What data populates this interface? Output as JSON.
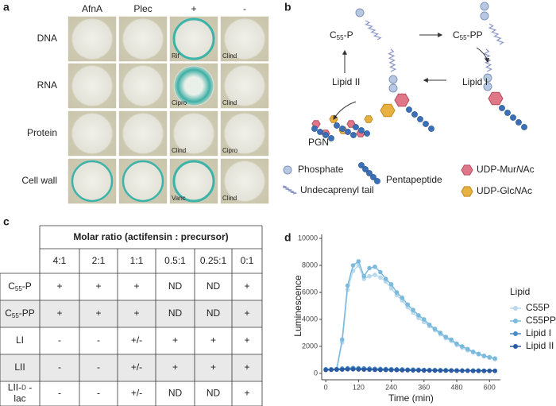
{
  "panel_labels": [
    "a",
    "b",
    "c",
    "d"
  ],
  "plates": {
    "columns": [
      "AfnA",
      "Plec",
      "+",
      "-"
    ],
    "rows": [
      {
        "label": "DNA",
        "controls": [
          "Rif",
          "Clind"
        ]
      },
      {
        "label": "RNA",
        "controls": [
          "Cipro",
          "Clind"
        ]
      },
      {
        "label": "Protein",
        "controls": [
          "Clind",
          "Cipro"
        ]
      },
      {
        "label": "Cell wall",
        "controls": [
          "Vanc",
          "Clind"
        ]
      }
    ]
  },
  "pathway": {
    "stages": [
      [
        {
          "text": "C"
        },
        {
          "text": "55",
          "sub": true
        },
        {
          "text": "-P"
        }
      ],
      [
        {
          "text": "C"
        },
        {
          "text": "55",
          "sub": true
        },
        {
          "text": "-PP"
        }
      ],
      [
        {
          "text": "Lipid I"
        }
      ],
      [
        {
          "text": "Lipid II"
        }
      ],
      [
        {
          "text": "PGN"
        }
      ]
    ],
    "legend": [
      [
        {
          "text": "Phosphate"
        }
      ],
      [
        {
          "text": "Undecaprenyl tail"
        }
      ],
      [
        {
          "text": "Pentapeptide"
        }
      ],
      [
        {
          "text": "UDP-Mur"
        },
        {
          "text": "N",
          "italic": true
        },
        {
          "text": "Ac"
        }
      ],
      [
        {
          "text": "UDP-Glc"
        },
        {
          "text": "N",
          "italic": true
        },
        {
          "text": "Ac"
        }
      ]
    ]
  },
  "table": {
    "title": "Molar ratio (actifensin : precursor)",
    "ratios": [
      "4:1",
      "2:1",
      "1:1",
      "0.5:1",
      "0.25:1",
      "0:1"
    ],
    "rows": [
      {
        "label": [
          [
            {
              "text": "C"
            },
            {
              "text": "55",
              "sub": true
            },
            {
              "text": "-P"
            }
          ]
        ],
        "cells": [
          "+",
          "+",
          "+",
          "ND",
          "ND",
          "+"
        ]
      },
      {
        "label": [
          [
            {
              "text": "C"
            },
            {
              "text": "55",
              "sub": true
            },
            {
              "text": "-PP"
            }
          ]
        ],
        "cells": [
          "+",
          "+",
          "+",
          "ND",
          "ND",
          "+"
        ]
      },
      {
        "label": [
          [
            {
              "text": "LI"
            }
          ]
        ],
        "cells": [
          "-",
          "-",
          "+/-",
          "+",
          "+",
          "+"
        ]
      },
      {
        "label": [
          [
            {
              "text": "LII"
            }
          ]
        ],
        "cells": [
          "-",
          "-",
          "+/-",
          "+",
          "+",
          "+"
        ]
      },
      {
        "label": [
          [
            {
              "text": "LII-"
            },
            {
              "text": "D",
              "small": true
            },
            {
              "text": " -"
            }
          ],
          [
            {
              "text": "lac"
            }
          ]
        ],
        "cells": [
          "-",
          "-",
          "+/-",
          "ND",
          "ND",
          "+"
        ]
      }
    ]
  },
  "chart_data": {
    "type": "line",
    "x_label": "Time (min)",
    "y_label": "Luminescence",
    "legend_title": "Lipid",
    "x": [
      0,
      20,
      40,
      60,
      80,
      100,
      120,
      140,
      160,
      180,
      200,
      220,
      240,
      260,
      280,
      300,
      320,
      340,
      360,
      380,
      400,
      420,
      440,
      460,
      480,
      500,
      520,
      540,
      560,
      580,
      600,
      620
    ],
    "series": [
      {
        "name": "C55P",
        "color": "#b9d9ec",
        "values": [
          300,
          300,
          300,
          2300,
          6200,
          7600,
          8000,
          7000,
          7200,
          7300,
          7100,
          6800,
          6300,
          5800,
          5400,
          4900,
          4500,
          4100,
          3800,
          3500,
          3200,
          2900,
          2600,
          2400,
          2100,
          1900,
          1700,
          1550,
          1400,
          1250,
          1150,
          1050
        ]
      },
      {
        "name": "C55PP",
        "color": "#7bbadd",
        "values": [
          300,
          300,
          300,
          2500,
          6500,
          8000,
          8300,
          7200,
          7800,
          7900,
          7500,
          7000,
          6600,
          6000,
          5600,
          5100,
          4700,
          4300,
          4000,
          3600,
          3300,
          3000,
          2700,
          2500,
          2200,
          2000,
          1800,
          1600,
          1450,
          1300,
          1200,
          1100
        ]
      },
      {
        "name": "Lipid I",
        "color": "#4a8cc6",
        "values": [
          300,
          300,
          320,
          350,
          380,
          400,
          380,
          370,
          350,
          340,
          330,
          320,
          310,
          300,
          290,
          280,
          280,
          270,
          260,
          250,
          250,
          240,
          240,
          230,
          230,
          220,
          220,
          210,
          210,
          200,
          200,
          200
        ]
      },
      {
        "name": "Lipid II",
        "color": "#2a5aa2",
        "values": [
          250,
          260,
          270,
          280,
          300,
          300,
          290,
          280,
          270,
          260,
          250,
          250,
          240,
          240,
          230,
          230,
          220,
          220,
          210,
          210,
          200,
          200,
          200,
          200,
          190,
          190,
          190,
          180,
          180,
          180,
          180,
          180
        ]
      }
    ],
    "xlim": [
      -15,
      640
    ],
    "ylim": [
      -300,
      10300
    ],
    "xticks": [
      0,
      120,
      240,
      360,
      480,
      600
    ],
    "yticks": [
      0,
      2000,
      4000,
      6000,
      8000,
      10000
    ],
    "legend": "right"
  }
}
